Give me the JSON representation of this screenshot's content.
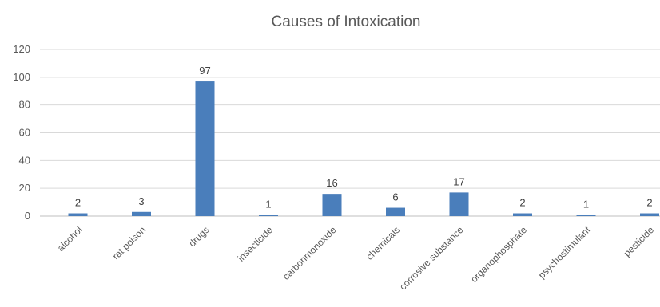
{
  "chart_data": {
    "type": "bar",
    "title": "Causes of Intoxication",
    "categories": [
      "alcohol",
      "rat poison",
      "drugs",
      "insecticide",
      "carbonmonoxide",
      "chemicals",
      "corrosive substance",
      "organophosphate",
      "psychostimulant",
      "pesticide"
    ],
    "values": [
      2,
      3,
      97,
      1,
      16,
      6,
      17,
      2,
      1,
      2
    ],
    "data_labels": [
      "2",
      "3",
      "97",
      "1",
      "16",
      "6",
      "17",
      "2",
      "1",
      "2"
    ],
    "y_ticks": [
      "0",
      "20",
      "40",
      "60",
      "80",
      "100",
      "120"
    ],
    "ylim": [
      0,
      120
    ],
    "xlabel": "",
    "ylabel": "",
    "grid": true,
    "legend": "none",
    "bar_color": "#4a7ebb"
  }
}
